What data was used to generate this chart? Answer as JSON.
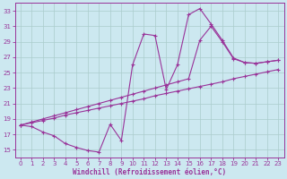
{
  "xlabel": "Windchill (Refroidissement éolien,°C)",
  "bg_color": "#cce8f0",
  "line_color": "#993399",
  "grid_color": "#aacccc",
  "xlim": [
    -0.5,
    23.5
  ],
  "ylim": [
    14,
    34
  ],
  "yticks": [
    15,
    17,
    19,
    21,
    23,
    25,
    27,
    29,
    31,
    33
  ],
  "xticks": [
    0,
    1,
    2,
    3,
    4,
    5,
    6,
    7,
    8,
    9,
    10,
    11,
    12,
    13,
    14,
    15,
    16,
    17,
    18,
    19,
    20,
    21,
    22,
    23
  ],
  "line1_x": [
    0,
    1,
    2,
    3,
    4,
    5,
    6,
    7,
    8,
    9,
    10,
    11,
    12,
    13,
    14,
    15,
    16,
    17,
    18,
    19,
    20,
    21,
    22,
    23
  ],
  "line1_y": [
    18.2,
    18.0,
    17.3,
    16.8,
    15.8,
    15.3,
    14.9,
    14.7,
    18.3,
    16.2,
    26.0,
    30.0,
    29.8,
    22.8,
    26.0,
    32.5,
    33.3,
    31.3,
    29.2,
    26.9,
    26.3,
    26.2,
    26.4,
    26.6
  ],
  "line2_x": [
    0,
    1,
    2,
    3,
    4,
    5,
    6,
    7,
    8,
    9,
    10,
    11,
    12,
    13,
    14,
    15,
    16,
    17,
    18,
    19,
    20,
    21,
    22,
    23
  ],
  "line2_y": [
    18.2,
    18.5,
    18.8,
    19.1,
    19.5,
    19.8,
    20.1,
    20.4,
    20.7,
    21.0,
    21.3,
    21.6,
    22.0,
    22.3,
    22.6,
    22.9,
    23.2,
    23.5,
    23.8,
    24.2,
    24.5,
    24.8,
    25.1,
    25.4
  ],
  "line3_x": [
    0,
    1,
    2,
    3,
    4,
    5,
    6,
    7,
    8,
    9,
    10,
    11,
    12,
    13,
    14,
    15,
    16,
    17,
    18,
    19,
    20,
    21,
    22,
    23
  ],
  "line3_y": [
    18.2,
    18.6,
    19.0,
    19.4,
    19.8,
    20.2,
    20.6,
    21.0,
    21.4,
    21.8,
    22.2,
    22.6,
    23.0,
    23.4,
    23.8,
    24.2,
    29.2,
    31.0,
    29.0,
    26.8,
    26.3,
    26.2,
    26.4,
    26.6
  ]
}
